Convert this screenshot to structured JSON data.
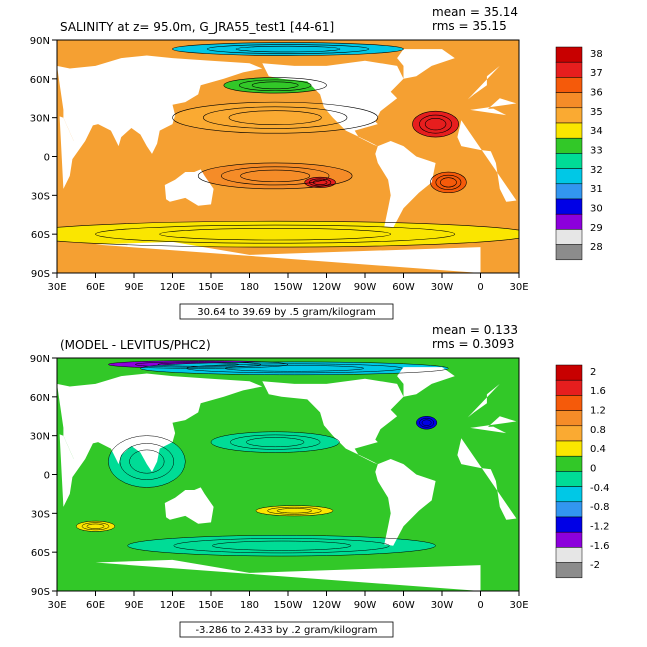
{
  "panels": [
    {
      "title": "SALINITY at z=  95.0m, G_JRA55_test1 [44-61]",
      "mean": "mean = 35.14",
      "rms": "rms = 35.15",
      "range_label": "30.64 to 39.69 by .5 gram/kilogram",
      "colorbar": {
        "labels": [
          "38",
          "37",
          "36",
          "35",
          "34",
          "33",
          "32",
          "31",
          "30",
          "29",
          "28"
        ],
        "colors": [
          "#c80000",
          "#e61e1e",
          "#f55a0a",
          "#f58c28",
          "#faaa32",
          "#fae600",
          "#32c828",
          "#00dc96",
          "#00c8e6",
          "#3296f0",
          "#0000e6",
          "#8c00dc",
          "#e6e6e6",
          "#8c8c8c"
        ]
      },
      "field": {
        "ocean_color": "#f5a032",
        "features": [
          {
            "color": "#faaa32",
            "lon": 200,
            "lat": 30,
            "rx": 80,
            "ry": 12
          },
          {
            "color": "#f58c28",
            "lon": 200,
            "lat": -15,
            "rx": 60,
            "ry": 10
          },
          {
            "color": "#e61e1e",
            "lon": 235,
            "lat": -20,
            "rx": 12,
            "ry": 4
          },
          {
            "color": "#e61e1e",
            "lon": 325,
            "lat": 25,
            "rx": 18,
            "ry": 10
          },
          {
            "color": "#f55a0a",
            "lon": 335,
            "lat": -20,
            "rx": 14,
            "ry": 8
          },
          {
            "color": "#fae600",
            "lon": 200,
            "lat": -60,
            "rx": 200,
            "ry": 10
          },
          {
            "color": "#32c828",
            "lon": 200,
            "lat": 55,
            "rx": 40,
            "ry": 6
          },
          {
            "color": "#00c8e6",
            "lon": 210,
            "lat": 83,
            "rx": 90,
            "ry": 5
          }
        ]
      }
    },
    {
      "title": "(MODEL - LEVITUS/PHC2)",
      "mean": "mean = 0.133",
      "rms": "rms = 0.3093",
      "range_label": "-3.286 to 2.433 by .2 gram/kilogram",
      "colorbar": {
        "labels": [
          "2",
          "1.6",
          "1.2",
          "0.8",
          "0.4",
          "0",
          "-0.4",
          "-0.8",
          "-1.2",
          "-1.6",
          "-2"
        ],
        "colors": [
          "#c80000",
          "#e61e1e",
          "#f55a0a",
          "#f58c28",
          "#faaa32",
          "#fae600",
          "#32c828",
          "#00dc96",
          "#00c8e6",
          "#3296f0",
          "#0000e6",
          "#8c00dc",
          "#e6e6e6",
          "#8c8c8c"
        ]
      },
      "field": {
        "ocean_color": "#32c828",
        "features": [
          {
            "color": "#00dc96",
            "lon": 100,
            "lat": 10,
            "rx": 30,
            "ry": 20
          },
          {
            "color": "#00dc96",
            "lon": 200,
            "lat": 25,
            "rx": 50,
            "ry": 8
          },
          {
            "color": "#00dc96",
            "lon": 205,
            "lat": -55,
            "rx": 120,
            "ry": 8
          },
          {
            "color": "#fae600",
            "lon": 215,
            "lat": -28,
            "rx": 30,
            "ry": 4
          },
          {
            "color": "#fae600",
            "lon": 60,
            "lat": -40,
            "rx": 15,
            "ry": 4
          },
          {
            "color": "#0000e6",
            "lon": 318,
            "lat": 40,
            "rx": 8,
            "ry": 5
          },
          {
            "color": "#8c00dc",
            "lon": 140,
            "lat": 85,
            "rx": 70,
            "ry": 3
          },
          {
            "color": "#00c8e6",
            "lon": 215,
            "lat": 82,
            "rx": 120,
            "ry": 5
          }
        ]
      }
    }
  ],
  "axes": {
    "x_ticks": [
      "30E",
      "60E",
      "90E",
      "120E",
      "150E",
      "180",
      "150W",
      "120W",
      "90W",
      "60W",
      "30W",
      "0",
      "30E"
    ],
    "y_ticks": [
      "90N",
      "60N",
      "30N",
      "0",
      "30S",
      "60S",
      "90S"
    ]
  }
}
